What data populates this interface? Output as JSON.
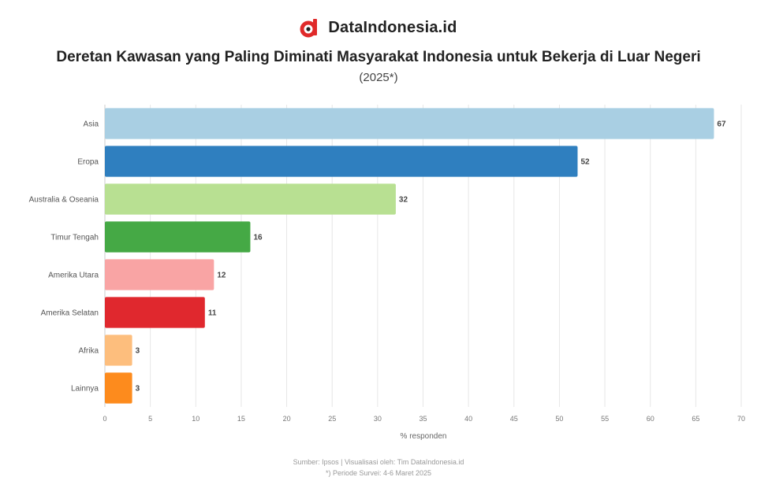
{
  "brand": {
    "name": "DataIndonesia.id",
    "logo_color": "#e02a2a"
  },
  "header": {
    "title": "Deretan Kawasan yang Paling Diminati Masyarakat Indonesia untuk Bekerja di Luar Negeri",
    "subtitle": "(2025*)"
  },
  "footer": {
    "source": "Sumber: Ipsos | Visualisasi oleh: Tim DataIndonesia.id",
    "note": "*) Periode Survei: 4-6 Maret 2025"
  },
  "chart_data": {
    "type": "bar",
    "orientation": "horizontal",
    "categories": [
      "Asia",
      "Eropa",
      "Australia & Oseania",
      "Timur Tengah",
      "Amerika Utara",
      "Amerika Selatan",
      "Afrika",
      "Lainnya"
    ],
    "values": [
      67,
      52,
      32,
      16,
      12,
      11,
      3,
      3
    ],
    "value_labels": [
      "67",
      "52",
      "32",
      "16",
      "12",
      "11",
      "3",
      "3"
    ],
    "colors": [
      "#a9cfe3",
      "#2f7fbf",
      "#b8e092",
      "#45a945",
      "#f9a4a4",
      "#e0282e",
      "#fdbe7d",
      "#fd8b1d"
    ],
    "title": "Deretan Kawasan yang Paling Diminati Masyarakat Indonesia untuk Bekerja di Luar Negeri",
    "subtitle": "(2025*)",
    "xlabel": "% responden",
    "ylabel": "",
    "xlim": [
      0,
      70
    ],
    "xticks": [
      0,
      5,
      10,
      15,
      20,
      25,
      30,
      35,
      40,
      45,
      50,
      55,
      60,
      65,
      70
    ],
    "grid": true,
    "legend": "none"
  }
}
